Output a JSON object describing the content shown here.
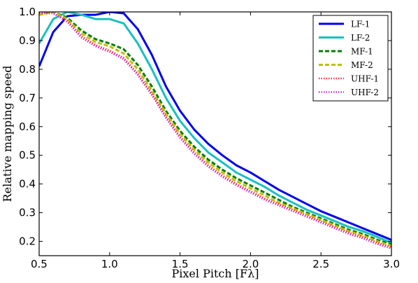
{
  "chart_data": {
    "type": "line",
    "title": "",
    "xlabel": "Pixel Pitch [Fλ]",
    "ylabel": "Relative mapping speed",
    "xlim": [
      0.5,
      3.0
    ],
    "ylim": [
      0.15,
      1.0
    ],
    "xticks": [
      "0.5",
      "1.0",
      "1.5",
      "2.0",
      "2.5",
      "3.0"
    ],
    "yticks": [
      "0.2",
      "0.3",
      "0.4",
      "0.5",
      "0.6",
      "0.7",
      "0.8",
      "0.9",
      "1.0"
    ],
    "grid": false,
    "legend_position": "top-right",
    "x": [
      0.5,
      0.6,
      0.7,
      0.8,
      0.9,
      1.0,
      1.1,
      1.2,
      1.3,
      1.4,
      1.5,
      1.6,
      1.7,
      1.8,
      1.9,
      2.0,
      2.1,
      2.2,
      2.3,
      2.4,
      2.5,
      2.6,
      2.7,
      2.8,
      2.9,
      3.0
    ],
    "series": [
      {
        "name": "LF-1",
        "color": "#0000ee",
        "dash": "solid",
        "width": 3,
        "values": [
          0.81,
          0.93,
          0.985,
          0.99,
          0.99,
          1.0,
          0.995,
          0.94,
          0.85,
          0.74,
          0.655,
          0.59,
          0.54,
          0.5,
          0.465,
          0.44,
          0.41,
          0.38,
          0.355,
          0.33,
          0.305,
          0.285,
          0.265,
          0.245,
          0.225,
          0.205
        ]
      },
      {
        "name": "LF-2",
        "color": "#19c0c0",
        "dash": "solid",
        "width": 3,
        "values": [
          0.89,
          0.975,
          1.0,
          0.99,
          0.975,
          0.975,
          0.96,
          0.89,
          0.8,
          0.7,
          0.62,
          0.56,
          0.51,
          0.475,
          0.44,
          0.415,
          0.39,
          0.36,
          0.335,
          0.31,
          0.29,
          0.27,
          0.25,
          0.235,
          0.215,
          0.195
        ]
      },
      {
        "name": "MF-1",
        "color": "#007f00",
        "dash": "dashed",
        "width": 3,
        "values": [
          0.99,
          1.0,
          0.98,
          0.935,
          0.905,
          0.89,
          0.87,
          0.815,
          0.74,
          0.655,
          0.585,
          0.53,
          0.485,
          0.45,
          0.42,
          0.395,
          0.37,
          0.345,
          0.32,
          0.3,
          0.28,
          0.26,
          0.24,
          0.225,
          0.205,
          0.19
        ]
      },
      {
        "name": "MF-2",
        "color": "#bfbf00",
        "dash": "dashed",
        "width": 3,
        "values": [
          0.99,
          1.0,
          0.975,
          0.925,
          0.895,
          0.88,
          0.855,
          0.8,
          0.725,
          0.645,
          0.575,
          0.52,
          0.475,
          0.44,
          0.41,
          0.385,
          0.36,
          0.335,
          0.315,
          0.295,
          0.275,
          0.255,
          0.235,
          0.22,
          0.2,
          0.185
        ]
      },
      {
        "name": "UHF-1",
        "color": "#ff3030",
        "dash": "dotted",
        "width": 2.5,
        "values": [
          0.995,
          0.995,
          0.97,
          0.915,
          0.885,
          0.865,
          0.84,
          0.785,
          0.715,
          0.635,
          0.565,
          0.51,
          0.465,
          0.43,
          0.4,
          0.375,
          0.35,
          0.33,
          0.31,
          0.29,
          0.27,
          0.25,
          0.23,
          0.215,
          0.195,
          0.18
        ]
      },
      {
        "name": "UHF-2",
        "color": "#cc33cc",
        "dash": "dotted",
        "width": 2.5,
        "values": [
          1.0,
          0.995,
          0.965,
          0.91,
          0.88,
          0.86,
          0.835,
          0.78,
          0.71,
          0.63,
          0.56,
          0.505,
          0.46,
          0.425,
          0.395,
          0.37,
          0.345,
          0.325,
          0.305,
          0.285,
          0.265,
          0.245,
          0.225,
          0.21,
          0.19,
          0.175
        ]
      }
    ]
  }
}
